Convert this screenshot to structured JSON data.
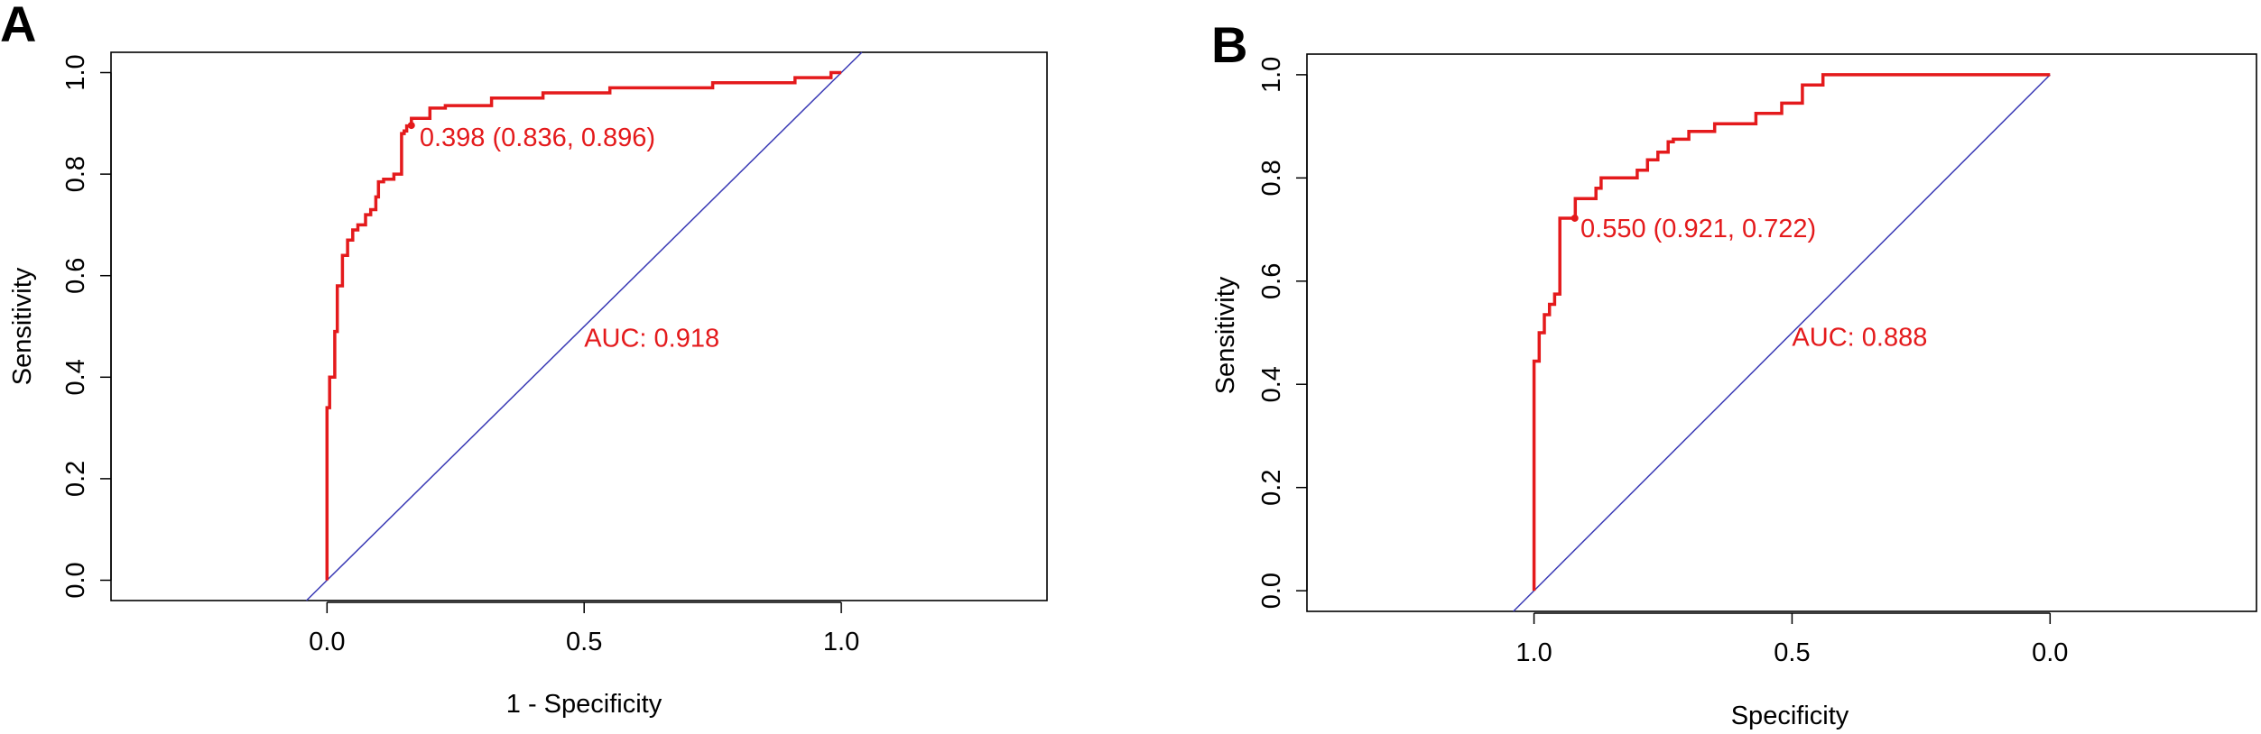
{
  "chart_data": [
    {
      "panel_label": "A",
      "type": "line",
      "xlabel": "1 - Specificity",
      "ylabel": "Sensitivity",
      "xlim": [
        -0.42,
        1.4
      ],
      "ylim": [
        -0.04,
        1.04
      ],
      "xticks": [
        0.0,
        0.5,
        1.0
      ],
      "xtick_labels": [
        "0.0",
        "0.5",
        "1.0"
      ],
      "yticks": [
        0.0,
        0.2,
        0.4,
        0.6,
        0.8,
        1.0
      ],
      "ytick_labels": [
        "0.0",
        "0.2",
        "0.4",
        "0.6",
        "0.8",
        "1.0"
      ],
      "grid": false,
      "series": [
        {
          "color": "#e41a1c",
          "x": [
            0.0,
            0.0,
            0.005,
            0.005,
            0.015,
            0.015,
            0.02,
            0.02,
            0.03,
            0.03,
            0.04,
            0.04,
            0.05,
            0.05,
            0.06,
            0.06,
            0.075,
            0.075,
            0.085,
            0.085,
            0.095,
            0.095,
            0.1,
            0.1,
            0.11,
            0.11,
            0.13,
            0.13,
            0.145,
            0.145,
            0.15,
            0.15,
            0.155,
            0.155,
            0.164,
            0.164,
            0.2,
            0.2,
            0.23,
            0.23,
            0.32,
            0.32,
            0.42,
            0.42,
            0.55,
            0.55,
            0.75,
            0.75,
            0.91,
            0.91,
            0.98,
            0.98,
            1.0
          ],
          "y": [
            0.0,
            0.34,
            0.34,
            0.4,
            0.4,
            0.49,
            0.49,
            0.58,
            0.58,
            0.64,
            0.64,
            0.67,
            0.67,
            0.69,
            0.69,
            0.7,
            0.7,
            0.72,
            0.72,
            0.73,
            0.73,
            0.755,
            0.755,
            0.785,
            0.785,
            0.79,
            0.79,
            0.8,
            0.8,
            0.88,
            0.88,
            0.885,
            0.885,
            0.895,
            0.895,
            0.91,
            0.91,
            0.93,
            0.93,
            0.935,
            0.935,
            0.95,
            0.95,
            0.96,
            0.96,
            0.97,
            0.97,
            0.98,
            0.98,
            0.99,
            0.99,
            1.0,
            1.0
          ]
        }
      ],
      "reference_line": {
        "x": [
          -0.04,
          1.04
        ],
        "y": [
          -0.04,
          1.04
        ],
        "color": "#3a3ab5"
      },
      "best_point": {
        "x": 0.164,
        "y": 0.896
      },
      "annotations": [
        {
          "text": "0.398 (0.836, 0.896)",
          "x": 0.18,
          "y": 0.855
        },
        {
          "text": "AUC: 0.918",
          "x": 0.5,
          "y": 0.46
        }
      ]
    },
    {
      "panel_label": "B",
      "type": "line",
      "xlabel": "Specificity",
      "ylabel": "Sensitivity",
      "x_reversed": true,
      "xlim": [
        1.44,
        -0.4
      ],
      "ylim": [
        -0.04,
        1.04
      ],
      "xticks": [
        1.0,
        0.5,
        0.0
      ],
      "xtick_labels": [
        "1.0",
        "0.5",
        "0.0"
      ],
      "yticks": [
        0.0,
        0.2,
        0.4,
        0.6,
        0.8,
        1.0
      ],
      "ytick_labels": [
        "0.0",
        "0.2",
        "0.4",
        "0.6",
        "0.8",
        "1.0"
      ],
      "grid": false,
      "series": [
        {
          "color": "#e41a1c",
          "x": [
            1.0,
            1.0,
            0.99,
            0.99,
            0.98,
            0.98,
            0.97,
            0.97,
            0.96,
            0.96,
            0.95,
            0.95,
            0.92,
            0.92,
            0.88,
            0.88,
            0.87,
            0.87,
            0.8,
            0.8,
            0.78,
            0.78,
            0.76,
            0.76,
            0.74,
            0.74,
            0.73,
            0.73,
            0.7,
            0.7,
            0.65,
            0.65,
            0.57,
            0.57,
            0.52,
            0.52,
            0.48,
            0.48,
            0.44,
            0.44,
            0.32,
            0.32,
            0.0
          ],
          "y": [
            0.0,
            0.445,
            0.445,
            0.5,
            0.5,
            0.535,
            0.535,
            0.555,
            0.555,
            0.575,
            0.575,
            0.722,
            0.722,
            0.76,
            0.76,
            0.78,
            0.78,
            0.8,
            0.8,
            0.815,
            0.815,
            0.835,
            0.835,
            0.85,
            0.85,
            0.87,
            0.87,
            0.875,
            0.875,
            0.89,
            0.89,
            0.905,
            0.905,
            0.925,
            0.925,
            0.945,
            0.945,
            0.98,
            0.98,
            1.0,
            1.0,
            1.0,
            1.0
          ]
        }
      ],
      "reference_line": {
        "x": [
          1.04,
          -0.0
        ],
        "y": [
          -0.04,
          1.0
        ],
        "color": "#3a3ab5"
      },
      "best_point": {
        "x": 0.921,
        "y": 0.722
      },
      "annotations": [
        {
          "text": "0.550 (0.921, 0.722)",
          "x": 0.91,
          "y": 0.685
        },
        {
          "text": "AUC: 0.888",
          "x": 0.5,
          "y": 0.475
        }
      ]
    }
  ]
}
